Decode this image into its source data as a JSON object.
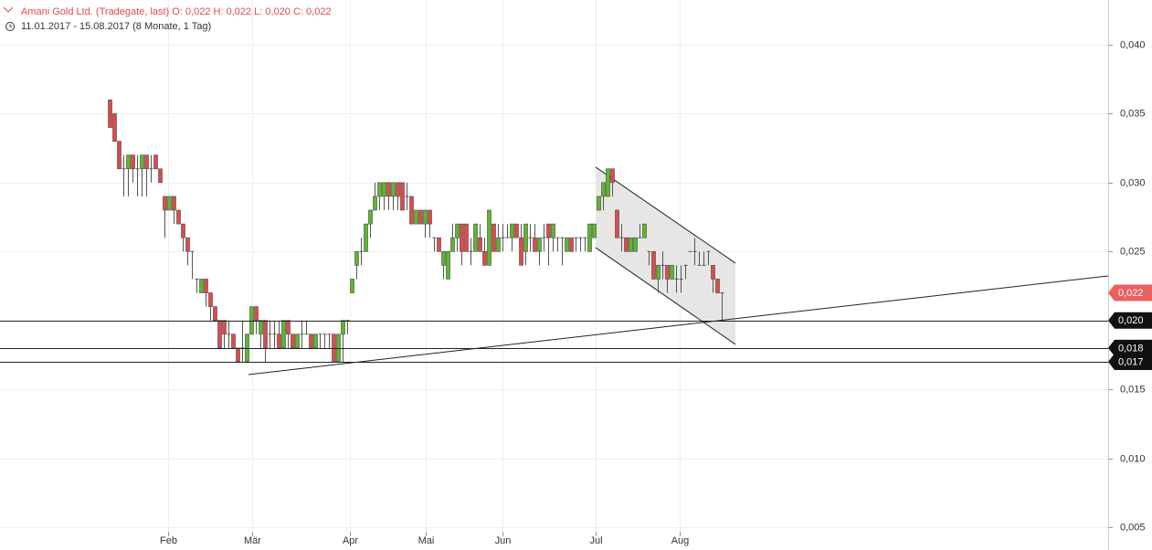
{
  "chart_data": {
    "type": "candlestick",
    "title": "Amani Gold Ltd. (Tradegate, last)  O: 0,022  H: 0,022  L: 0,020  C: 0,022",
    "subtitle": "11.01.2017 - 15.08.2017   (8 Monate, 1 Tag)",
    "up_color": "#5cb82b",
    "down_color": "#e04a4a",
    "xlim": [
      -24,
      218.6
    ],
    "ylim": [
      0.00334,
      0.04325
    ],
    "grid": true,
    "xticks": [
      {
        "value": 12.8,
        "label": "Feb"
      },
      {
        "value": 31.2,
        "label": "Mär"
      },
      {
        "value": 52.6,
        "label": "Apr"
      },
      {
        "value": 69.2,
        "label": "Mai"
      },
      {
        "value": 86,
        "label": "Jun"
      },
      {
        "value": 106.4,
        "label": "Jul"
      },
      {
        "value": 124.8,
        "label": "Aug"
      }
    ],
    "yticks": [
      {
        "value": 0.04,
        "label": "0,040"
      },
      {
        "value": 0.035,
        "label": "0,035"
      },
      {
        "value": 0.03,
        "label": "0,030"
      },
      {
        "value": 0.025,
        "label": "0,025"
      },
      {
        "value": 0.015,
        "label": "0,015"
      },
      {
        "value": 0.01,
        "label": "0,010"
      },
      {
        "value": 0.005,
        "label": "0,005"
      }
    ],
    "levels": [
      {
        "value": 0.02,
        "label": "0,020"
      },
      {
        "value": 0.018,
        "label": "0,018"
      },
      {
        "value": 0.017,
        "label": "0,017"
      }
    ],
    "last": {
      "value": 0.022,
      "label": "0,022"
    },
    "trendline": {
      "x": [
        30.4,
        218.6
      ],
      "y": [
        0.01607,
        0.02323
      ]
    },
    "channel": {
      "x": [
        106.4,
        137
      ],
      "upper": [
        0.03112,
        0.02416
      ],
      "lower": [
        0.02528,
        0.01826
      ]
    },
    "candles": [
      [
        0.036,
        0.036,
        0.034,
        0.034
      ],
      [
        0.035,
        0.035,
        0.033,
        0.033
      ],
      [
        0.033,
        0.033,
        0.031,
        0.031
      ],
      [
        0.031,
        0.032,
        0.029,
        0.031
      ],
      [
        0.031,
        0.032,
        0.029,
        0.032
      ],
      [
        0.032,
        0.032,
        0.03,
        0.031
      ],
      [
        0.031,
        0.032,
        0.029,
        0.031
      ],
      [
        0.031,
        0.032,
        0.029,
        0.032
      ],
      [
        0.032,
        0.032,
        0.029,
        0.031
      ],
      [
        0.031,
        0.032,
        0.03,
        0.031
      ],
      [
        0.032,
        0.032,
        0.031,
        0.031
      ],
      [
        0.031,
        0.031,
        0.03,
        0.03
      ],
      [
        0.029,
        0.029,
        0.026,
        0.028
      ],
      [
        0.028,
        0.029,
        0.028,
        0.029
      ],
      [
        0.029,
        0.029,
        0.027,
        0.028
      ],
      [
        0.028,
        0.028,
        0.027,
        0.027
      ],
      [
        0.027,
        0.027,
        0.025,
        0.026
      ],
      [
        0.026,
        0.026,
        0.024,
        0.025
      ],
      [
        0.025,
        0.025,
        0.023,
        0.025
      ],
      [
        0.023,
        0.023,
        0.022,
        0.023
      ],
      [
        0.022,
        0.023,
        0.022,
        0.023
      ],
      [
        0.023,
        0.023,
        0.021,
        0.022
      ],
      [
        0.022,
        0.022,
        0.02,
        0.021
      ],
      [
        0.021,
        0.021,
        0.02,
        0.02
      ],
      [
        0.02,
        0.02,
        0.018,
        0.018
      ],
      [
        0.02,
        0.02,
        0.018,
        0.019
      ],
      [
        0.019,
        0.02,
        0.018,
        0.019
      ],
      [
        0.019,
        0.019,
        0.018,
        0.018
      ],
      [
        0.018,
        0.018,
        0.017,
        0.017
      ],
      [
        0.018,
        0.02,
        0.017,
        0.018
      ],
      [
        0.017,
        0.019,
        0.017,
        0.019
      ],
      [
        0.019,
        0.021,
        0.019,
        0.021
      ],
      [
        0.021,
        0.021,
        0.019,
        0.02
      ],
      [
        0.019,
        0.02,
        0.018,
        0.02
      ],
      [
        0.02,
        0.02,
        0.017,
        0.018
      ],
      [
        0.019,
        0.02,
        0.018,
        0.019
      ],
      [
        0.019,
        0.02,
        0.018,
        0.019
      ],
      [
        0.019,
        0.02,
        0.018,
        0.018
      ],
      [
        0.018,
        0.02,
        0.018,
        0.02
      ],
      [
        0.02,
        0.02,
        0.018,
        0.019
      ],
      [
        0.019,
        0.019,
        0.018,
        0.018
      ],
      [
        0.018,
        0.019,
        0.018,
        0.019
      ],
      [
        0.019,
        0.02,
        0.018,
        0.019
      ],
      [
        0.019,
        0.02,
        0.019,
        0.019
      ],
      [
        0.019,
        0.019,
        0.018,
        0.018
      ],
      [
        0.018,
        0.019,
        0.018,
        0.019
      ],
      [
        0.019,
        0.019,
        0.018,
        0.019
      ],
      [
        0.019,
        0.019,
        0.018,
        0.019
      ],
      [
        0.019,
        0.019,
        0.018,
        0.019
      ],
      [
        0.019,
        0.019,
        0.017,
        0.017
      ],
      [
        0.017,
        0.019,
        0.017,
        0.019
      ],
      [
        0.019,
        0.02,
        0.017,
        0.02
      ],
      [
        0.02,
        0.02,
        0.019,
        0.02
      ],
      [
        0.022,
        0.023,
        0.022,
        0.023
      ],
      [
        0.024,
        0.025,
        0.023,
        0.025
      ],
      [
        0.025,
        0.026,
        0.024,
        0.025
      ],
      [
        0.025,
        0.027,
        0.025,
        0.027
      ],
      [
        0.027,
        0.028,
        0.026,
        0.028
      ],
      [
        0.028,
        0.03,
        0.028,
        0.029
      ],
      [
        0.029,
        0.03,
        0.028,
        0.03
      ],
      [
        0.029,
        0.03,
        0.028,
        0.03
      ],
      [
        0.03,
        0.03,
        0.028,
        0.029
      ],
      [
        0.029,
        0.03,
        0.028,
        0.03
      ],
      [
        0.03,
        0.03,
        0.028,
        0.029
      ],
      [
        0.03,
        0.03,
        0.028,
        0.028
      ],
      [
        0.029,
        0.03,
        0.028,
        0.029
      ],
      [
        0.029,
        0.029,
        0.027,
        0.027
      ],
      [
        0.027,
        0.028,
        0.027,
        0.028
      ],
      [
        0.028,
        0.028,
        0.027,
        0.027
      ],
      [
        0.027,
        0.028,
        0.026,
        0.028
      ],
      [
        0.028,
        0.028,
        0.026,
        0.027
      ],
      [
        0.026,
        0.026,
        0.025,
        0.026
      ],
      [
        0.026,
        0.026,
        0.025,
        0.025
      ],
      [
        0.024,
        0.025,
        0.023,
        0.025
      ],
      [
        0.023,
        0.025,
        0.023,
        0.025
      ],
      [
        0.025,
        0.027,
        0.025,
        0.026
      ],
      [
        0.026,
        0.027,
        0.025,
        0.027
      ],
      [
        0.027,
        0.027,
        0.024,
        0.025
      ],
      [
        0.027,
        0.027,
        0.025,
        0.025
      ],
      [
        0.025,
        0.026,
        0.024,
        0.025
      ],
      [
        0.025,
        0.027,
        0.025,
        0.027
      ],
      [
        0.026,
        0.027,
        0.025,
        0.025
      ],
      [
        0.025,
        0.026,
        0.024,
        0.024
      ],
      [
        0.024,
        0.028,
        0.024,
        0.028
      ],
      [
        0.027,
        0.027,
        0.025,
        0.025
      ],
      [
        0.025,
        0.027,
        0.025,
        0.026
      ],
      [
        0.026,
        0.027,
        0.025,
        0.026
      ],
      [
        0.026,
        0.027,
        0.026,
        0.026
      ],
      [
        0.026,
        0.027,
        0.025,
        0.027
      ],
      [
        0.027,
        0.027,
        0.026,
        0.026
      ],
      [
        0.026,
        0.027,
        0.024,
        0.024
      ],
      [
        0.025,
        0.027,
        0.024,
        0.027
      ],
      [
        0.026,
        0.027,
        0.025,
        0.026
      ],
      [
        0.026,
        0.027,
        0.025,
        0.025
      ],
      [
        0.025,
        0.026,
        0.024,
        0.026
      ],
      [
        0.026,
        0.027,
        0.025,
        0.026
      ],
      [
        0.027,
        0.027,
        0.024,
        0.026
      ],
      [
        0.026,
        0.027,
        0.025,
        0.027
      ],
      [
        0.026,
        0.026,
        0.025,
        0.026
      ],
      [
        0.026,
        0.026,
        0.024,
        0.026
      ],
      [
        0.025,
        0.026,
        0.025,
        0.026
      ],
      [
        0.026,
        0.026,
        0.025,
        0.025
      ],
      [
        0.026,
        0.026,
        0.025,
        0.026
      ],
      [
        0.026,
        0.026,
        0.025,
        0.026
      ],
      [
        0.026,
        0.026,
        0.025,
        0.026
      ],
      [
        0.025,
        0.027,
        0.025,
        0.027
      ],
      [
        0.026,
        0.027,
        0.026,
        0.027
      ],
      [
        0.028,
        0.029,
        0.028,
        0.029
      ],
      [
        0.029,
        0.03,
        0.028,
        0.03
      ],
      [
        0.029,
        0.031,
        0.029,
        0.031
      ],
      [
        0.031,
        0.031,
        0.029,
        0.03
      ],
      [
        0.028,
        0.028,
        0.026,
        0.026
      ],
      [
        0.026,
        0.027,
        0.025,
        0.026
      ],
      [
        0.026,
        0.026,
        0.025,
        0.025
      ],
      [
        0.025,
        0.026,
        0.025,
        0.026
      ],
      [
        0.025,
        0.026,
        0.025,
        0.026
      ],
      [
        0.026,
        0.027,
        0.026,
        0.026
      ],
      [
        0.026,
        0.027,
        0.026,
        0.027
      ],
      [
        0.025,
        0.025,
        0.024,
        0.025
      ],
      [
        0.025,
        0.025,
        0.023,
        0.023
      ],
      [
        0.023,
        0.024,
        0.022,
        0.024
      ],
      [
        0.024,
        0.025,
        0.023,
        0.024
      ],
      [
        0.024,
        0.024,
        0.022,
        0.023
      ],
      [
        0.023,
        0.024,
        0.023,
        0.024
      ],
      [
        0.023,
        0.024,
        0.022,
        0.023
      ],
      [
        0.023,
        0.024,
        0.022,
        0.023
      ],
      [
        0.024,
        0.024,
        0.023,
        0.024
      ],
      [
        0.025,
        0.025,
        0.025,
        0.025
      ],
      [
        0.025,
        0.026,
        0.024,
        0.025
      ],
      [
        0.024,
        0.025,
        0.024,
        0.024
      ],
      [
        0.024,
        0.025,
        0.024,
        0.024
      ],
      [
        0.025,
        0.025,
        0.024,
        0.025
      ],
      [
        0.024,
        0.024,
        0.022,
        0.023
      ],
      [
        0.023,
        0.023,
        0.022,
        0.022
      ],
      [
        0.022,
        0.022,
        0.02,
        0.022
      ]
    ]
  }
}
